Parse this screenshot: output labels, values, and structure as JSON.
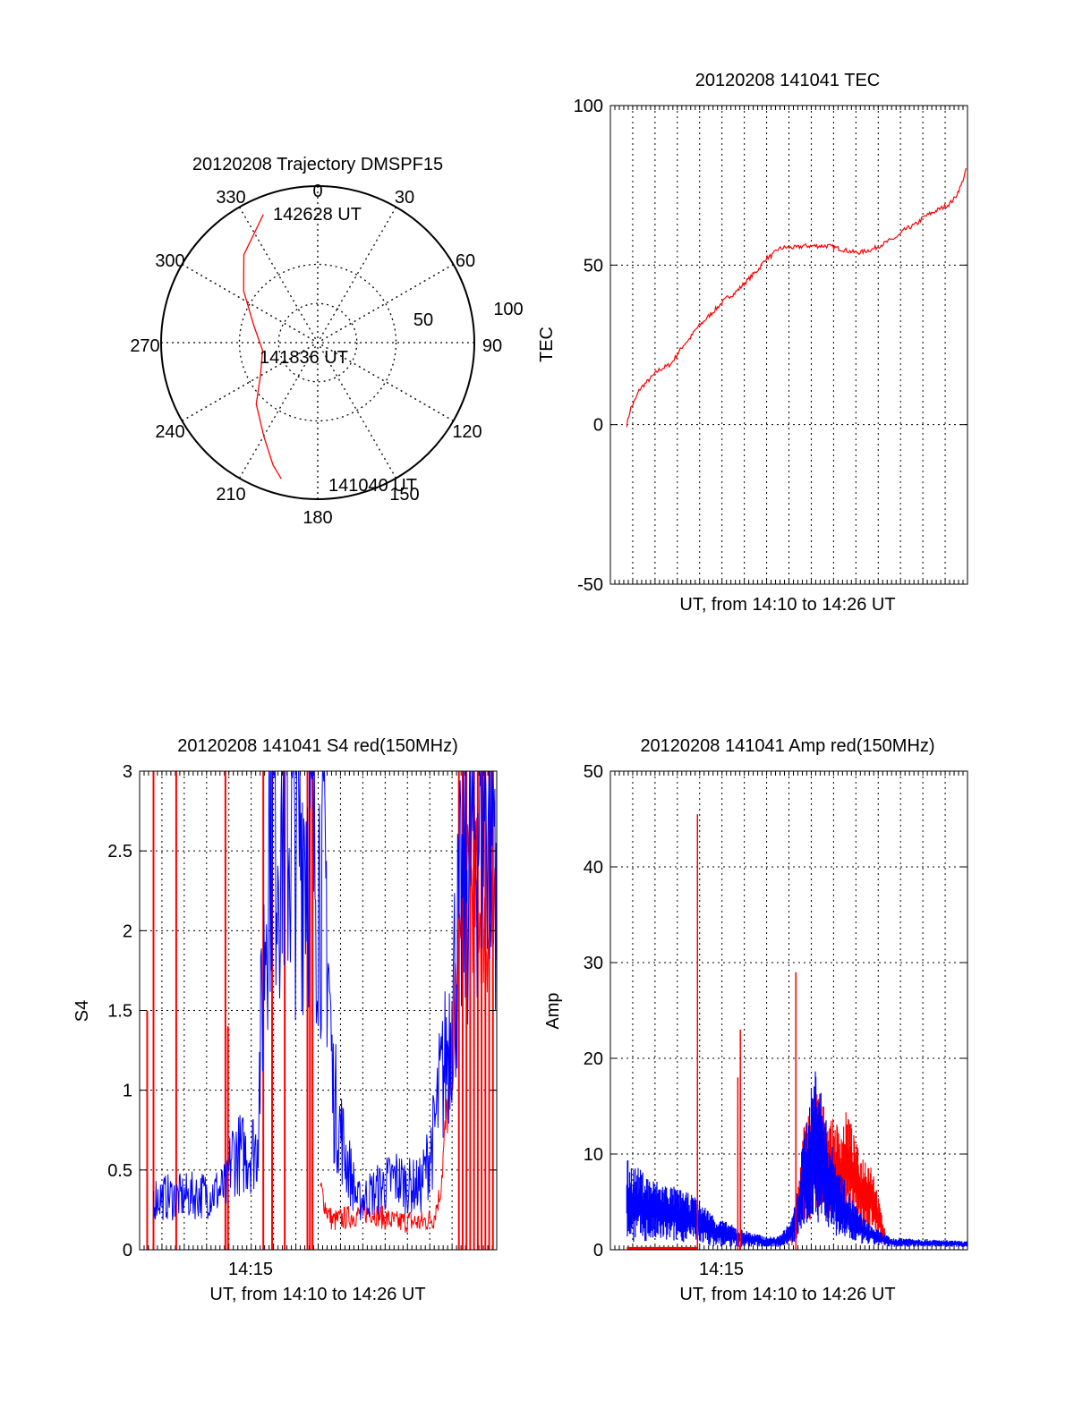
{
  "chart_data": [
    {
      "type": "polar",
      "title": "20120208 Trajectory DMSPF15",
      "azimuth_labels": [
        "0",
        "30",
        "60",
        "90",
        "120",
        "150",
        "180",
        "210",
        "240",
        "270",
        "300",
        "330"
      ],
      "radial_labels": [
        "50",
        "100"
      ],
      "rlim": [
        0,
        100
      ],
      "grid": true,
      "colors": {
        "trajectory": "#ff0000"
      },
      "series": [
        {
          "points_az_el": [
            [
              195,
              9
            ],
            [
              200,
              15
            ],
            [
              210,
              28
            ],
            [
              225,
              40
            ],
            [
              240,
              52
            ],
            [
              262,
              58
            ],
            [
              285,
              52
            ],
            [
              305,
              38
            ],
            [
              320,
              24
            ],
            [
              337,
              10
            ]
          ]
        }
      ],
      "annotations": [
        {
          "text": "142628 UT",
          "az": 345,
          "el": 10
        },
        {
          "text": "141836 UT",
          "az": 180,
          "el": 90
        },
        {
          "text": "141040 UT",
          "az": 170,
          "el": 6
        }
      ]
    },
    {
      "type": "line",
      "title": "20120208 141041 TEC",
      "xlabel": "UT, from 14:10 to 14:26 UT",
      "ylabel": "TEC",
      "xlim": [
        14.167,
        14.45
      ],
      "ylim": [
        -50,
        100
      ],
      "yticks": [
        -50,
        0,
        50,
        100
      ],
      "grid": true,
      "colors": {
        "tec": "#ff0000"
      },
      "series": [
        {
          "x": [
            14.18,
            14.183,
            14.187,
            14.19,
            14.195,
            14.2,
            14.205,
            14.21,
            14.215,
            14.22,
            14.225,
            14.23,
            14.235,
            14.24,
            14.245,
            14.25,
            14.255,
            14.26,
            14.265,
            14.27,
            14.275,
            14.28,
            14.285,
            14.29,
            14.295,
            14.3,
            14.305,
            14.31,
            14.315,
            14.32,
            14.325,
            14.33,
            14.335,
            14.34,
            14.345,
            14.35,
            14.355,
            14.36,
            14.365,
            14.37,
            14.375,
            14.38,
            14.385,
            14.39,
            14.395,
            14.4,
            14.405,
            14.41,
            14.415,
            14.42,
            14.425,
            14.43,
            14.435,
            14.44,
            14.445,
            14.449
          ],
          "values": [
            0,
            5,
            8,
            11,
            13,
            15,
            17,
            18,
            19,
            22,
            25,
            27,
            30,
            32,
            34,
            36,
            38,
            40,
            41,
            43,
            45,
            47,
            49,
            52,
            53,
            55,
            55.5,
            55.5,
            55.5,
            56,
            56,
            56,
            56,
            56,
            55.5,
            55,
            54.5,
            54,
            54,
            54.5,
            55,
            56,
            57,
            58,
            59,
            61,
            62,
            63,
            65,
            66,
            67,
            68,
            69,
            71,
            75,
            80
          ]
        }
      ]
    },
    {
      "type": "line",
      "title": "20120208 141041 S4 red(150MHz)",
      "xlabel": "UT, from 14:10 to 14:26 UT",
      "ylabel": "S4",
      "xlim": [
        14.167,
        14.45
      ],
      "ylim": [
        0,
        3
      ],
      "yticks": [
        0,
        0.5,
        1,
        1.5,
        2,
        2.5,
        3
      ],
      "xtick_labels": [
        "14:15"
      ],
      "grid": true,
      "colors": {
        "red_series": "#ff0000",
        "blue_series": "#0000ff"
      },
      "series": [
        {
          "x": [
            14.178,
            14.2,
            14.22,
            14.236,
            14.24,
            14.25,
            14.26,
            14.27,
            14.28,
            14.29,
            14.3,
            14.305,
            14.31,
            14.315,
            14.32,
            14.33,
            14.335,
            14.34,
            14.35,
            14.36,
            14.37,
            14.38,
            14.39,
            14.4,
            14.405,
            14.41,
            14.415,
            14.42,
            14.43,
            14.44,
            14.45
          ],
          "values": [
            0.33,
            0.33,
            0.35,
            0.38,
            0.6,
            0.6,
            0.65,
            2.8,
            2.7,
            2.6,
            2.7,
            2.5,
            2.4,
            2.2,
            1.0,
            0.6,
            0.45,
            0.3,
            0.35,
            0.4,
            0.45,
            0.4,
            0.4,
            0.7,
            1.0,
            1.2,
            1.6,
            2.0,
            2.6,
            2.9,
            2.7
          ]
        },
        {
          "x": [
            14.31,
            14.315,
            14.32,
            14.33,
            14.34,
            14.35,
            14.36,
            14.37,
            14.38,
            14.39,
            14.4,
            14.405,
            14.41,
            14.415,
            14.42,
            14.43,
            14.44,
            14.45
          ],
          "values": [
            0.4,
            0.25,
            0.18,
            0.2,
            0.22,
            0.24,
            0.2,
            0.17,
            0.18,
            0.17,
            0.2,
            0.35,
            0.8,
            1.3,
            1.8,
            2.3,
            2.1,
            1.9
          ]
        },
        {
          "x_spikes": [
            14.178,
            14.173,
            14.196,
            14.235,
            14.237,
            14.265,
            14.272,
            14.282,
            14.3,
            14.302,
            14.304,
            14.42,
            14.423,
            14.426,
            14.429,
            14.432,
            14.435,
            14.438,
            14.441,
            14.444,
            14.447
          ],
          "values": [
            3,
            1.5,
            3,
            3,
            1.4,
            3,
            3,
            3,
            3,
            3,
            3,
            3,
            3,
            3,
            3,
            3,
            3,
            3,
            3,
            3,
            3
          ]
        }
      ]
    },
    {
      "type": "line",
      "title": "20120208 141041 Amp red(150MHz)",
      "xlabel": "UT, from 14:10 to 14:26 UT",
      "ylabel": "Amp",
      "xlim": [
        14.167,
        14.45
      ],
      "ylim": [
        0,
        50
      ],
      "yticks": [
        0,
        10,
        20,
        30,
        40,
        50
      ],
      "xtick_labels": [
        "14:15"
      ],
      "grid": true,
      "colors": {
        "red_series": "#ff0000",
        "blue_series": "#0000ff"
      },
      "series": [
        {
          "x": [
            14.18,
            14.2,
            14.22,
            14.235,
            14.25,
            14.27,
            14.29,
            14.3,
            14.31,
            14.315,
            14.32,
            14.33,
            14.34,
            14.35,
            14.36,
            14.37,
            14.38,
            14.39,
            14.4,
            14.42,
            14.45
          ],
          "upper": [
            9.5,
            7.5,
            6.5,
            5.5,
            3.5,
            2.2,
            1.4,
            1.4,
            3,
            6,
            12,
            20,
            12,
            8,
            5,
            3,
            2,
            1.2,
            1.3,
            1.1,
            0.9
          ],
          "lower": [
            0.8,
            0.8,
            0.8,
            0.8,
            0.3,
            0.3,
            0.3,
            0.3,
            0.5,
            1,
            2,
            3,
            2,
            1,
            0.7,
            0.5,
            0.4,
            0.3,
            0.3,
            0.3,
            0.3
          ]
        },
        {
          "x": [
            14.31,
            14.315,
            14.32,
            14.33,
            14.34,
            14.35,
            14.355,
            14.36,
            14.365,
            14.37,
            14.375,
            14.38,
            14.385
          ],
          "upper": [
            2,
            6,
            13,
            17,
            14,
            13,
            15,
            12,
            10,
            10,
            9,
            5,
            2
          ],
          "lower": [
            0.3,
            1,
            2,
            4,
            3,
            3,
            3,
            3,
            2,
            2,
            2,
            1,
            0.3
          ]
        },
        {
          "x_spikes": [
            14.236,
            14.27,
            14.268,
            14.314
          ],
          "values": [
            45.5,
            23,
            18,
            29
          ]
        }
      ]
    }
  ]
}
